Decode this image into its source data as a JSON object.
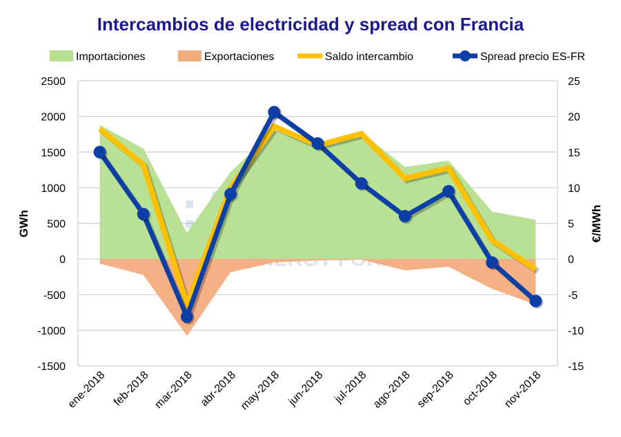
{
  "chart_data": {
    "type": "area+line",
    "title": "Intercambios de electricidad y spread con Francia",
    "ylabel_left": "GWh",
    "ylabel_right": "€/MWh",
    "ylim_left": [
      -1500,
      2500
    ],
    "ylim_right": [
      -15,
      25
    ],
    "yticks_left": [
      "2500",
      "2000",
      "1500",
      "1000",
      "500",
      "0",
      "-500",
      "-1000",
      "-1500"
    ],
    "yticks_right": [
      "25",
      "20",
      "15",
      "10",
      "5",
      "0",
      "-5",
      "-10",
      "-15"
    ],
    "grid": true,
    "legend_position": "top",
    "categories": [
      "ene-2018",
      "feb-2018",
      "mar-2018",
      "abr-2018",
      "may-2018",
      "jun-2018",
      "jul-2018",
      "ago-2018",
      "sep-2018",
      "oct-2018",
      "nov-2018"
    ],
    "series": [
      {
        "name": "Importaciones",
        "type": "area",
        "axis": "left",
        "color": "#b5df8f",
        "values": [
          1880,
          1550,
          370,
          1220,
          1800,
          1580,
          1780,
          1290,
          1380,
          665,
          550
        ]
      },
      {
        "name": "Exportaciones",
        "type": "area",
        "axis": "left",
        "color": "#f2ad7e",
        "values": [
          -65,
          -225,
          -1080,
          -185,
          -50,
          -20,
          -10,
          -160,
          -110,
          -420,
          -640
        ]
      },
      {
        "name": "Saldo intercambio",
        "type": "line",
        "axis": "left",
        "color": "#ffc000",
        "values": [
          1825,
          1320,
          -640,
          1000,
          1860,
          1595,
          1757,
          1130,
          1275,
          260,
          -145
        ]
      },
      {
        "name": "Spread precio ES-FR",
        "type": "line-marker",
        "axis": "right",
        "color": "#0d3fa6",
        "values": [
          15.0,
          6.3,
          -8.1,
          9.1,
          20.6,
          16.2,
          10.6,
          6.0,
          9.5,
          -0.5,
          -5.9
        ]
      }
    ],
    "watermark": "AleaSoft ENERGY FORECASTING"
  }
}
